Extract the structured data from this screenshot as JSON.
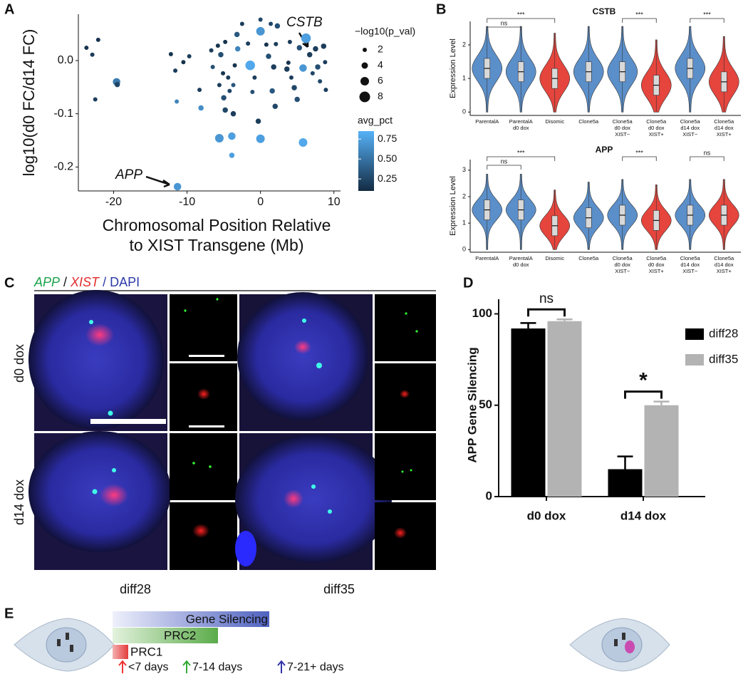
{
  "panel_labels": [
    "A",
    "B",
    "C",
    "D",
    "E"
  ],
  "chart_data": [
    {
      "type": "scatter",
      "y_label": "log10(d0 FC/d14 FC)",
      "x_label": [
        "Chromosomal Position Relative",
        "to XIST Transgene (Mb)"
      ],
      "xlim": [
        -24.8,
        10.9
      ],
      "xticks": [
        -20,
        -10,
        0,
        10
      ],
      "ylim": [
        -0.245,
        0.087
      ],
      "yticks": [
        -0.2,
        -0.1,
        {
          "value": 0,
          "label": "0.0"
        }
      ],
      "x": [
        -23.7,
        -22.1,
        -22.9,
        -22.5,
        -19.6,
        -19.5,
        -12.2,
        -11.6,
        -10.5,
        -11.4,
        -9.7,
        -11.3,
        -8.1,
        -8.3,
        -6.5,
        -6.7,
        -5.8,
        -5.4,
        -5.1,
        -5.6,
        -5.0,
        -4.8,
        -5.6,
        -4.8,
        -4.4,
        -4.2,
        -3.7,
        -3.7,
        -3.5,
        -3.2,
        -3.1,
        -3.9,
        -3.9,
        -2.5,
        -1.7,
        -1.4,
        -1.1,
        -0.8,
        0.0,
        0.0,
        -0.3,
        0.0,
        0.8,
        1.1,
        1.6,
        1.8,
        2.1,
        1.4,
        2.3,
        2.0,
        4.0,
        5.3,
        5.8,
        6.2,
        3.6,
        4.2,
        4.6,
        5.0,
        3.8,
        6.7,
        7.1,
        7.8,
        7.5,
        8.6,
        8.8,
        8.1,
        8.9,
        5.8
      ],
      "y": [
        0.024,
        0.039,
        0.011,
        -0.073,
        -0.04,
        -0.045,
        0.012,
        -0.019,
        -0.003,
        -0.077,
        0.008,
        -0.237,
        -0.089,
        -0.055,
        -0.012,
        0.019,
        0.028,
        0.011,
        -0.024,
        -0.046,
        -0.07,
        -0.093,
        -0.146,
        0.035,
        -0.032,
        -0.057,
        -0.1,
        -0.046,
        -0.009,
        0.049,
        0.022,
        -0.142,
        -0.178,
        0.069,
        0.032,
        -0.009,
        -0.059,
        -0.032,
        0.077,
        0.055,
        -0.114,
        -0.147,
        0.03,
        0.008,
        -0.057,
        -0.012,
        0.031,
        0.069,
        0.065,
        -0.086,
        0.035,
        0.024,
        -0.014,
        0.042,
        -0.016,
        -0.032,
        -0.051,
        -0.073,
        -0.004,
        0.011,
        -0.024,
        -0.012,
        0.022,
        0.027,
        -0.003,
        -0.039,
        -0.055,
        -0.154
      ],
      "sizes": [
        2,
        2,
        2,
        2,
        5,
        3,
        2,
        2,
        2,
        2,
        2,
        5,
        3,
        2,
        2,
        2,
        2,
        3,
        2,
        2,
        3,
        3,
        6,
        2,
        2,
        2,
        3,
        2,
        2,
        3,
        3,
        5,
        3,
        2,
        2,
        7,
        2,
        2,
        2,
        6,
        3,
        6,
        2,
        3,
        3,
        3,
        2,
        2,
        3,
        3,
        2,
        3,
        5,
        7,
        3,
        2,
        3,
        3,
        2,
        3,
        2,
        3,
        3,
        3,
        2,
        2,
        2,
        6
      ],
      "avg_pct": [
        0.15,
        0.15,
        0.2,
        0.2,
        0.55,
        0.25,
        0.15,
        0.2,
        0.15,
        0.6,
        0.2,
        0.7,
        0.65,
        0.2,
        0.3,
        0.2,
        0.15,
        0.3,
        0.15,
        0.2,
        0.3,
        0.25,
        0.7,
        0.15,
        0.2,
        0.25,
        0.2,
        0.35,
        0.15,
        0.35,
        0.6,
        0.75,
        0.75,
        0.2,
        0.2,
        0.8,
        0.3,
        0.2,
        0.25,
        0.7,
        0.2,
        0.75,
        0.15,
        0.3,
        0.35,
        0.2,
        0.2,
        0.25,
        0.3,
        0.25,
        0.2,
        0.3,
        0.7,
        0.75,
        0.2,
        0.2,
        0.25,
        0.3,
        0.15,
        0.2,
        0.25,
        0.3,
        0.2,
        0.2,
        0.2,
        0.25,
        0.2,
        0.8
      ],
      "annotations": [
        "CSTB",
        "APP"
      ],
      "size_legend": {
        "title": "−log10(p_val)",
        "values": [
          2,
          4,
          6,
          8
        ]
      },
      "color_legend": {
        "title": "avg_pct",
        "low": "#132b43",
        "high": "#56b1f7",
        "color_lim": [
          0.1,
          0.85
        ],
        "ticks": [
          0.25,
          {
            "value": 0.5,
            "label": "0.50"
          },
          0.75
        ]
      }
    },
    {
      "type": "violin",
      "title": "CSTB",
      "y_label": "Expression Level",
      "categories": [
        [
          "ParentalA"
        ],
        [
          "ParentalA",
          "d0 dox"
        ],
        [
          "Disomic"
        ],
        [
          "Clone5a"
        ],
        [
          "Clone5a",
          "d0 dox",
          "XIST−"
        ],
        [
          "Clone5a",
          "d0 dox",
          "XIST+"
        ],
        [
          "Clone5a",
          "d14 dox",
          "XIST−"
        ],
        [
          "Clone5a",
          "d14 dox",
          "XIST+"
        ]
      ],
      "colors": [
        "#5b8fca",
        "#5b8fca",
        "#e5453d",
        "#5b8fca",
        "#5b8fca",
        "#e5453d",
        "#5b8fca",
        "#e5453d"
      ],
      "medians": [
        1.3,
        1.2,
        1.0,
        1.2,
        1.2,
        0.8,
        1.3,
        0.9
      ],
      "ylim": [
        -0.1,
        2.7
      ],
      "yticks": [
        0,
        1,
        2
      ],
      "significance": [
        "ns",
        "***",
        "***",
        "***"
      ]
    },
    {
      "type": "violin",
      "title": "APP",
      "y_label": "Expression Level",
      "categories": [
        [
          "ParentalA"
        ],
        [
          "ParentalA",
          "d0 dox"
        ],
        [
          "Disomic"
        ],
        [
          "Clone5a"
        ],
        [
          "Clone5a",
          "d0 dox",
          "XIST−"
        ],
        [
          "Clone5a",
          "d0 dox",
          "XIST+"
        ],
        [
          "Clone5a",
          "d14 dox",
          "XIST−"
        ],
        [
          "Clone5a",
          "d14 dox",
          "XIST+"
        ]
      ],
      "colors": [
        "#5b8fca",
        "#5b8fca",
        "#e5453d",
        "#5b8fca",
        "#5b8fca",
        "#e5453d",
        "#5b8fca",
        "#e5453d"
      ],
      "medians": [
        1.5,
        1.5,
        0.9,
        1.2,
        1.3,
        1.1,
        1.3,
        1.3
      ],
      "ylim": [
        -0.1,
        3.4
      ],
      "yticks": [
        0,
        1,
        2,
        3
      ],
      "significance": [
        "ns",
        "***",
        "***",
        "ns"
      ]
    },
    {
      "type": "bar",
      "y_label": "APP Gene Silencing",
      "categories": [
        "d0 dox",
        "d14 dox"
      ],
      "series": [
        {
          "name": "diff28",
          "color": "#000000",
          "values": [
            92,
            15
          ],
          "errors": [
            3,
            7
          ]
        },
        {
          "name": "diff35",
          "color": "#b3b3b3",
          "values": [
            96,
            50
          ],
          "errors": [
            1,
            2
          ]
        }
      ],
      "ylim": [
        0,
        108
      ],
      "yticks": [
        0,
        50,
        100
      ],
      "significance": [
        "ns",
        "*"
      ]
    }
  ],
  "micrographs": {
    "header": [
      "APP",
      " / ",
      "XIST",
      " / DAPI"
    ],
    "rows": [
      "d0 dox",
      "d14 dox"
    ],
    "columns": [
      "diff28",
      "diff35"
    ]
  },
  "timeline": {
    "bars": [
      "Gene Silencing",
      "PRC2",
      "PRC1"
    ],
    "times": [
      "<7 days",
      "7-14 days",
      "7-21+ days"
    ]
  }
}
